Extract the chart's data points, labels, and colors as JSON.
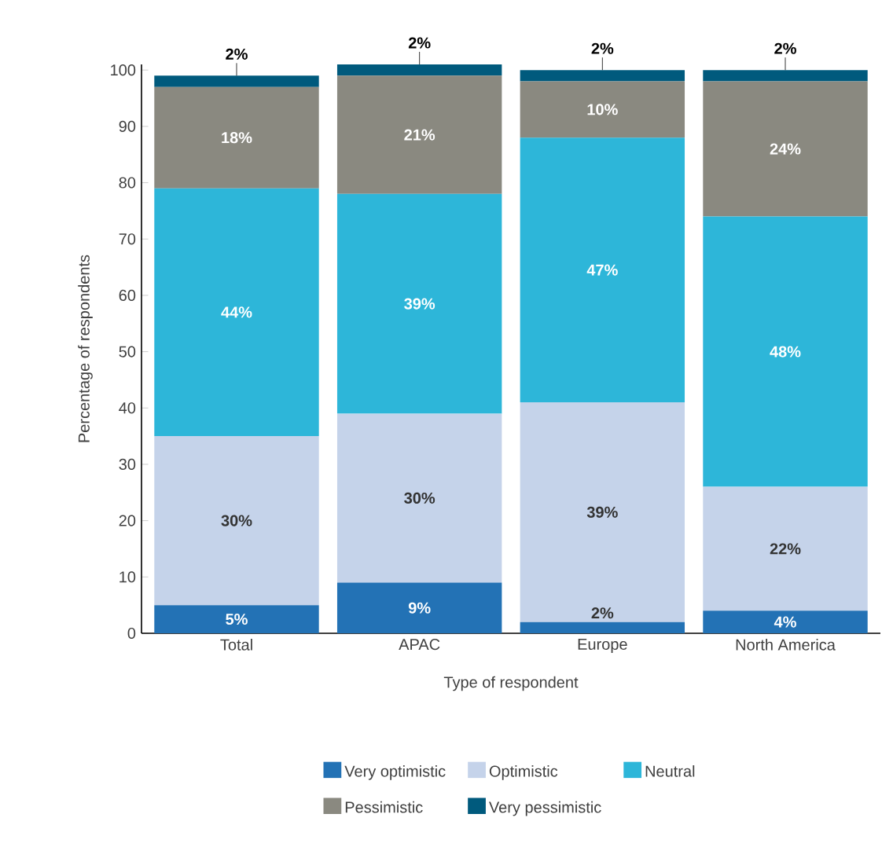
{
  "chart_data": {
    "type": "bar",
    "stacked": true,
    "xlabel": "Type of respondent",
    "ylabel": "Percentage of respondents",
    "categories": [
      "Total",
      "APAC",
      "Europe",
      "North America"
    ],
    "ylim": [
      0,
      101
    ],
    "yticks": [
      0,
      10,
      20,
      30,
      40,
      50,
      60,
      70,
      80,
      90,
      100
    ],
    "grid": false,
    "legend": "bottom",
    "series": [
      {
        "name": "Very optimistic",
        "color": "#2372b5",
        "values": [
          5,
          9,
          2,
          4
        ],
        "value_labels": [
          "5%",
          "9%",
          "2%",
          "4%"
        ]
      },
      {
        "name": "Optimistic",
        "color": "#c5d3ea",
        "values": [
          30,
          30,
          39,
          22
        ],
        "value_labels": [
          "30%",
          "30%",
          "39%",
          "22%"
        ]
      },
      {
        "name": "Neutral",
        "color": "#2db6d9",
        "values": [
          44,
          39,
          47,
          48
        ],
        "value_labels": [
          "44%",
          "39%",
          "47%",
          "48%"
        ]
      },
      {
        "name": "Pessimistic",
        "color": "#8a8980",
        "values": [
          18,
          21,
          10,
          24
        ],
        "value_labels": [
          "18%",
          "21%",
          "10%",
          "24%"
        ]
      },
      {
        "name": "Very pessimistic",
        "color": "#005a7d",
        "values": [
          2,
          2,
          2,
          2
        ],
        "value_labels": [
          "2%",
          "2%",
          "2%",
          "2%"
        ]
      }
    ]
  }
}
